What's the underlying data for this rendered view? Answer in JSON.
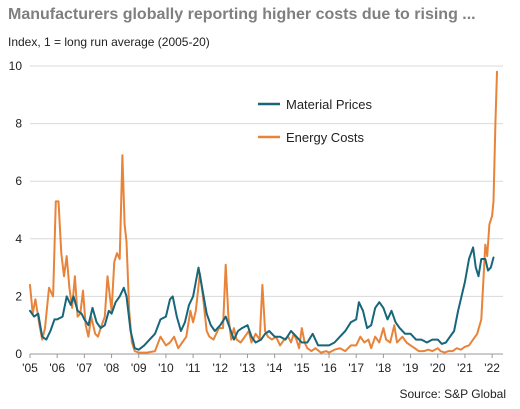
{
  "title": "Manufacturers globally reporting higher costs due to rising ...",
  "subtitle": "Index, 1 = long run average (2005-20)",
  "source": "Source: S&P Global",
  "chart_data": {
    "type": "line",
    "x_labels": [
      "'05",
      "'06",
      "'07",
      "'08",
      "'09",
      "'10",
      "'11",
      "'12",
      "'13",
      "'14",
      "'15",
      "'16",
      "'17",
      "'18",
      "'19",
      "'20",
      "'21",
      "'22"
    ],
    "x_range": [
      2005,
      2022.4
    ],
    "ylim": [
      0,
      10
    ],
    "yticks": [
      0,
      2,
      4,
      6,
      8,
      10
    ],
    "grid": true,
    "legend_placement": "upper-center",
    "series": [
      {
        "name": "Material Prices",
        "color": "#17667a",
        "points": [
          [
            2005.0,
            1.5
          ],
          [
            2005.15,
            1.3
          ],
          [
            2005.3,
            1.4
          ],
          [
            2005.45,
            0.6
          ],
          [
            2005.6,
            0.5
          ],
          [
            2005.75,
            0.8
          ],
          [
            2005.9,
            1.2
          ],
          [
            2006.0,
            1.2
          ],
          [
            2006.2,
            1.3
          ],
          [
            2006.35,
            2.0
          ],
          [
            2006.5,
            1.7
          ],
          [
            2006.6,
            2.0
          ],
          [
            2006.75,
            1.5
          ],
          [
            2006.9,
            1.4
          ],
          [
            2007.0,
            1.2
          ],
          [
            2007.15,
            1.0
          ],
          [
            2007.3,
            1.6
          ],
          [
            2007.45,
            1.1
          ],
          [
            2007.6,
            0.9
          ],
          [
            2007.75,
            1.0
          ],
          [
            2007.9,
            1.5
          ],
          [
            2008.0,
            1.4
          ],
          [
            2008.15,
            1.8
          ],
          [
            2008.3,
            2.0
          ],
          [
            2008.45,
            2.3
          ],
          [
            2008.55,
            2.0
          ],
          [
            2008.7,
            0.8
          ],
          [
            2008.85,
            0.2
          ],
          [
            2009.0,
            0.15
          ],
          [
            2009.2,
            0.3
          ],
          [
            2009.4,
            0.5
          ],
          [
            2009.6,
            0.7
          ],
          [
            2009.8,
            1.2
          ],
          [
            2010.0,
            1.3
          ],
          [
            2010.15,
            1.9
          ],
          [
            2010.25,
            2.0
          ],
          [
            2010.4,
            1.3
          ],
          [
            2010.55,
            0.8
          ],
          [
            2010.7,
            1.1
          ],
          [
            2010.85,
            1.7
          ],
          [
            2011.0,
            2.0
          ],
          [
            2011.1,
            2.5
          ],
          [
            2011.2,
            3.0
          ],
          [
            2011.35,
            2.2
          ],
          [
            2011.5,
            1.4
          ],
          [
            2011.65,
            1.0
          ],
          [
            2011.8,
            0.8
          ],
          [
            2012.0,
            1.0
          ],
          [
            2012.2,
            1.3
          ],
          [
            2012.35,
            0.9
          ],
          [
            2012.5,
            0.5
          ],
          [
            2012.65,
            0.8
          ],
          [
            2012.8,
            0.9
          ],
          [
            2013.0,
            1.0
          ],
          [
            2013.15,
            0.6
          ],
          [
            2013.3,
            0.4
          ],
          [
            2013.5,
            0.5
          ],
          [
            2013.65,
            0.7
          ],
          [
            2013.8,
            0.8
          ],
          [
            2014.0,
            0.6
          ],
          [
            2014.2,
            0.6
          ],
          [
            2014.4,
            0.5
          ],
          [
            2014.6,
            0.8
          ],
          [
            2014.8,
            0.6
          ],
          [
            2015.0,
            0.4
          ],
          [
            2015.2,
            0.4
          ],
          [
            2015.4,
            0.7
          ],
          [
            2015.6,
            0.3
          ],
          [
            2015.8,
            0.3
          ],
          [
            2016.0,
            0.3
          ],
          [
            2016.2,
            0.4
          ],
          [
            2016.4,
            0.6
          ],
          [
            2016.6,
            0.8
          ],
          [
            2016.8,
            1.1
          ],
          [
            2017.0,
            1.2
          ],
          [
            2017.1,
            1.8
          ],
          [
            2017.25,
            1.5
          ],
          [
            2017.4,
            0.9
          ],
          [
            2017.55,
            1.0
          ],
          [
            2017.7,
            1.6
          ],
          [
            2017.85,
            1.8
          ],
          [
            2018.0,
            1.6
          ],
          [
            2018.15,
            1.2
          ],
          [
            2018.3,
            1.5
          ],
          [
            2018.45,
            1.1
          ],
          [
            2018.6,
            0.9
          ],
          [
            2018.8,
            0.7
          ],
          [
            2019.0,
            0.7
          ],
          [
            2019.2,
            0.5
          ],
          [
            2019.4,
            0.5
          ],
          [
            2019.6,
            0.4
          ],
          [
            2019.8,
            0.5
          ],
          [
            2020.0,
            0.5
          ],
          [
            2020.15,
            0.35
          ],
          [
            2020.3,
            0.4
          ],
          [
            2020.45,
            0.6
          ],
          [
            2020.6,
            0.8
          ],
          [
            2020.75,
            1.5
          ],
          [
            2020.9,
            2.1
          ],
          [
            2021.0,
            2.5
          ],
          [
            2021.15,
            3.3
          ],
          [
            2021.3,
            3.7
          ],
          [
            2021.4,
            3.0
          ],
          [
            2021.5,
            2.7
          ],
          [
            2021.6,
            3.3
          ],
          [
            2021.75,
            3.3
          ],
          [
            2021.85,
            2.9
          ],
          [
            2021.95,
            3.0
          ],
          [
            2022.05,
            3.35
          ]
        ]
      },
      {
        "name": "Energy Costs",
        "color": "#e8833a",
        "points": [
          [
            2005.0,
            2.4
          ],
          [
            2005.1,
            1.4
          ],
          [
            2005.2,
            1.9
          ],
          [
            2005.35,
            1.0
          ],
          [
            2005.45,
            0.5
          ],
          [
            2005.55,
            0.9
          ],
          [
            2005.7,
            2.3
          ],
          [
            2005.85,
            2.0
          ],
          [
            2005.95,
            5.3
          ],
          [
            2006.05,
            5.3
          ],
          [
            2006.15,
            3.5
          ],
          [
            2006.25,
            2.7
          ],
          [
            2006.35,
            3.4
          ],
          [
            2006.45,
            2.3
          ],
          [
            2006.55,
            1.6
          ],
          [
            2006.65,
            2.7
          ],
          [
            2006.75,
            1.3
          ],
          [
            2006.85,
            1.4
          ],
          [
            2006.95,
            2.2
          ],
          [
            2007.05,
            1.0
          ],
          [
            2007.15,
            0.6
          ],
          [
            2007.25,
            1.3
          ],
          [
            2007.4,
            0.7
          ],
          [
            2007.5,
            0.6
          ],
          [
            2007.6,
            0.9
          ],
          [
            2007.75,
            1.3
          ],
          [
            2007.85,
            2.7
          ],
          [
            2008.0,
            1.5
          ],
          [
            2008.1,
            3.2
          ],
          [
            2008.2,
            3.5
          ],
          [
            2008.3,
            3.3
          ],
          [
            2008.4,
            6.9
          ],
          [
            2008.48,
            4.5
          ],
          [
            2008.55,
            3.9
          ],
          [
            2008.65,
            1.5
          ],
          [
            2008.75,
            0.4
          ],
          [
            2008.85,
            0.1
          ],
          [
            2009.0,
            0.05
          ],
          [
            2009.3,
            0.05
          ],
          [
            2009.6,
            0.1
          ],
          [
            2009.8,
            0.6
          ],
          [
            2010.0,
            0.3
          ],
          [
            2010.15,
            0.4
          ],
          [
            2010.3,
            0.6
          ],
          [
            2010.45,
            0.2
          ],
          [
            2010.6,
            0.4
          ],
          [
            2010.75,
            0.6
          ],
          [
            2010.9,
            1.5
          ],
          [
            2011.0,
            1.1
          ],
          [
            2011.1,
            1.5
          ],
          [
            2011.25,
            2.8
          ],
          [
            2011.35,
            2.1
          ],
          [
            2011.5,
            0.8
          ],
          [
            2011.6,
            0.6
          ],
          [
            2011.75,
            0.5
          ],
          [
            2011.85,
            0.7
          ],
          [
            2011.95,
            0.9
          ],
          [
            2012.1,
            0.9
          ],
          [
            2012.2,
            3.1
          ],
          [
            2012.3,
            1.3
          ],
          [
            2012.4,
            0.5
          ],
          [
            2012.5,
            0.9
          ],
          [
            2012.6,
            0.5
          ],
          [
            2012.75,
            0.4
          ],
          [
            2012.9,
            0.6
          ],
          [
            2013.05,
            0.8
          ],
          [
            2013.15,
            0.4
          ],
          [
            2013.3,
            0.7
          ],
          [
            2013.45,
            0.5
          ],
          [
            2013.55,
            2.4
          ],
          [
            2013.65,
            0.8
          ],
          [
            2013.75,
            0.6
          ],
          [
            2013.9,
            0.5
          ],
          [
            2014.05,
            0.6
          ],
          [
            2014.2,
            0.3
          ],
          [
            2014.35,
            0.5
          ],
          [
            2014.5,
            0.6
          ],
          [
            2014.6,
            0.4
          ],
          [
            2014.7,
            0.7
          ],
          [
            2014.8,
            0.5
          ],
          [
            2014.9,
            0.2
          ],
          [
            2015.0,
            0.9
          ],
          [
            2015.1,
            0.4
          ],
          [
            2015.2,
            0.2
          ],
          [
            2015.35,
            0.1
          ],
          [
            2015.5,
            0.2
          ],
          [
            2015.7,
            0.05
          ],
          [
            2015.9,
            0.1
          ],
          [
            2016.0,
            0.05
          ],
          [
            2016.2,
            0.15
          ],
          [
            2016.4,
            0.2
          ],
          [
            2016.6,
            0.1
          ],
          [
            2016.8,
            0.3
          ],
          [
            2017.0,
            0.3
          ],
          [
            2017.15,
            0.6
          ],
          [
            2017.3,
            0.4
          ],
          [
            2017.45,
            0.5
          ],
          [
            2017.55,
            0.2
          ],
          [
            2017.7,
            0.6
          ],
          [
            2017.85,
            0.4
          ],
          [
            2018.0,
            0.9
          ],
          [
            2018.1,
            0.5
          ],
          [
            2018.25,
            0.4
          ],
          [
            2018.4,
            1.0
          ],
          [
            2018.5,
            0.4
          ],
          [
            2018.7,
            0.6
          ],
          [
            2018.85,
            0.4
          ],
          [
            2019.0,
            0.3
          ],
          [
            2019.15,
            0.2
          ],
          [
            2019.3,
            0.1
          ],
          [
            2019.5,
            0.1
          ],
          [
            2019.65,
            0.15
          ],
          [
            2019.8,
            0.1
          ],
          [
            2020.0,
            0.2
          ],
          [
            2020.1,
            0.1
          ],
          [
            2020.25,
            0.05
          ],
          [
            2020.4,
            0.1
          ],
          [
            2020.55,
            0.1
          ],
          [
            2020.7,
            0.2
          ],
          [
            2020.85,
            0.15
          ],
          [
            2021.0,
            0.25
          ],
          [
            2021.15,
            0.3
          ],
          [
            2021.3,
            0.5
          ],
          [
            2021.45,
            0.7
          ],
          [
            2021.6,
            1.2
          ],
          [
            2021.75,
            3.8
          ],
          [
            2021.82,
            3.4
          ],
          [
            2021.9,
            4.5
          ],
          [
            2022.0,
            4.8
          ],
          [
            2022.05,
            5.3
          ],
          [
            2022.12,
            8.0
          ],
          [
            2022.18,
            9.8
          ]
        ]
      }
    ]
  }
}
